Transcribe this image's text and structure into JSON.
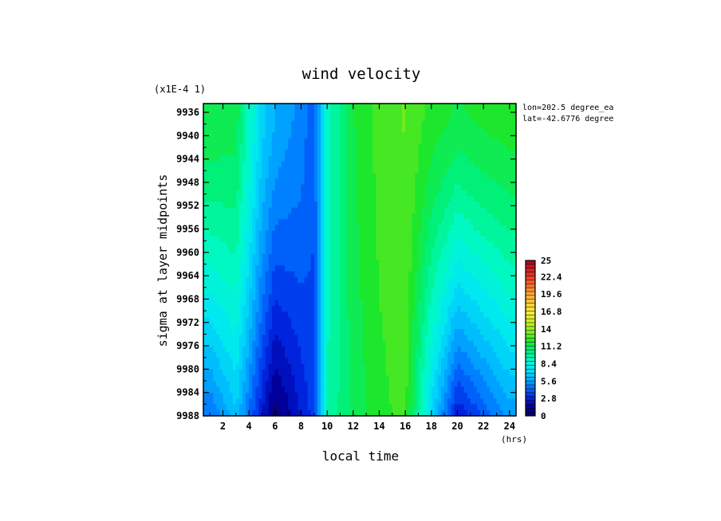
{
  "chart_data": {
    "type": "heatmap",
    "title": "wind velocity",
    "xlabel": "local time",
    "ylabel": "sigma at layer midpoints",
    "x_unit": "(hrs)",
    "y_scale_note": "(x1E-4 1)",
    "annotations": [
      "lon=202.5 degree_ea",
      "lat=-42.6776 degree"
    ],
    "x_ticks": [
      "2",
      "4",
      "6",
      "8",
      "10",
      "12",
      "14",
      "16",
      "18",
      "20",
      "22",
      "24"
    ],
    "y_ticks": [
      "9936",
      "9940",
      "9944",
      "9948",
      "9952",
      "9956",
      "9960",
      "9964",
      "9968",
      "9972",
      "9976",
      "9980",
      "9984",
      "9988"
    ],
    "xlim": [
      0.5,
      24.5
    ],
    "ylim": [
      9988,
      9934.5
    ],
    "colorbar": {
      "ticks": [
        "25",
        "22.4",
        "19.6",
        "16.8",
        "14",
        "11.2",
        "8.4",
        "5.6",
        "2.8",
        "0"
      ],
      "min": 0,
      "max": 25
    },
    "x": [
      1,
      3,
      5,
      6,
      7,
      8,
      9,
      10,
      12,
      14,
      16,
      18,
      20,
      22,
      24
    ],
    "top_values": [
      11.5,
      11.2,
      7.0,
      6.0,
      5.5,
      5.0,
      4.0,
      9.0,
      11.5,
      12.5,
      13.0,
      12.0,
      11.5,
      11.8,
      12.0
    ],
    "bottom_values": [
      4.5,
      6.5,
      2.5,
      0.5,
      1.5,
      2.5,
      3.5,
      9.5,
      11.0,
      12.0,
      12.5,
      7.0,
      2.5,
      4.0,
      5.5
    ]
  }
}
